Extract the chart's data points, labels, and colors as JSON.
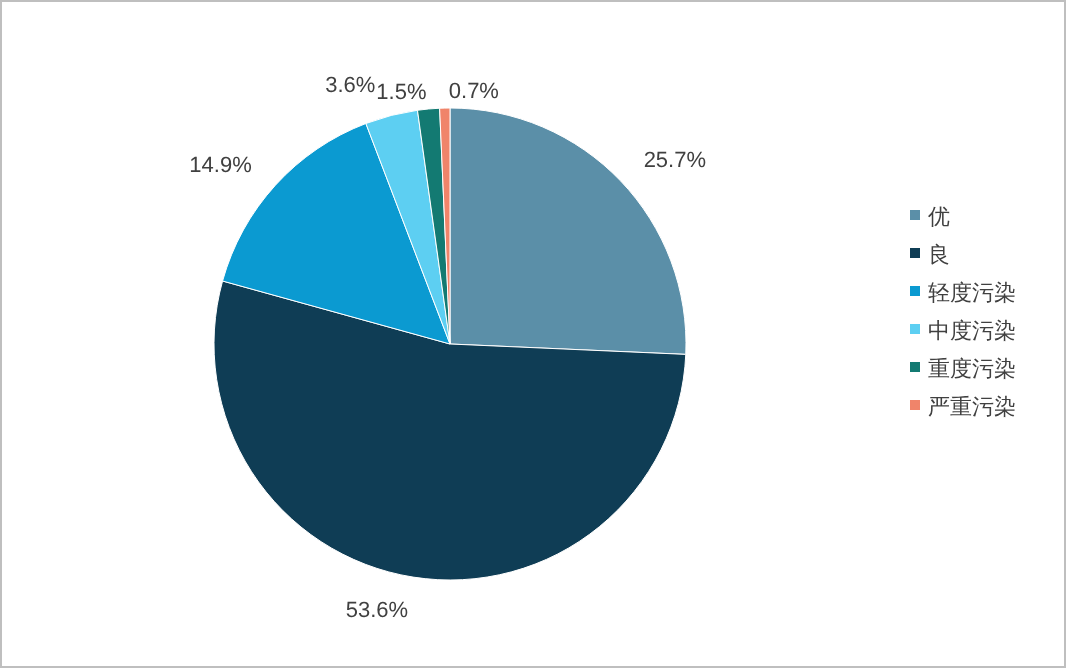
{
  "chart_data": {
    "type": "pie",
    "categories": [
      "优",
      "良",
      "轻度污染",
      "中度污染",
      "重度污染",
      "严重污染"
    ],
    "values": [
      25.7,
      53.6,
      14.9,
      3.6,
      1.5,
      0.7
    ],
    "colors": [
      "#5b8fa8",
      "#0f3d55",
      "#0b9ad1",
      "#5dcff2",
      "#137a72",
      "#f0846a"
    ],
    "value_labels": [
      "25.7%",
      "53.6%",
      "14.9%",
      "3.6%",
      "1.5%",
      "0.7%"
    ],
    "legend": "right"
  }
}
